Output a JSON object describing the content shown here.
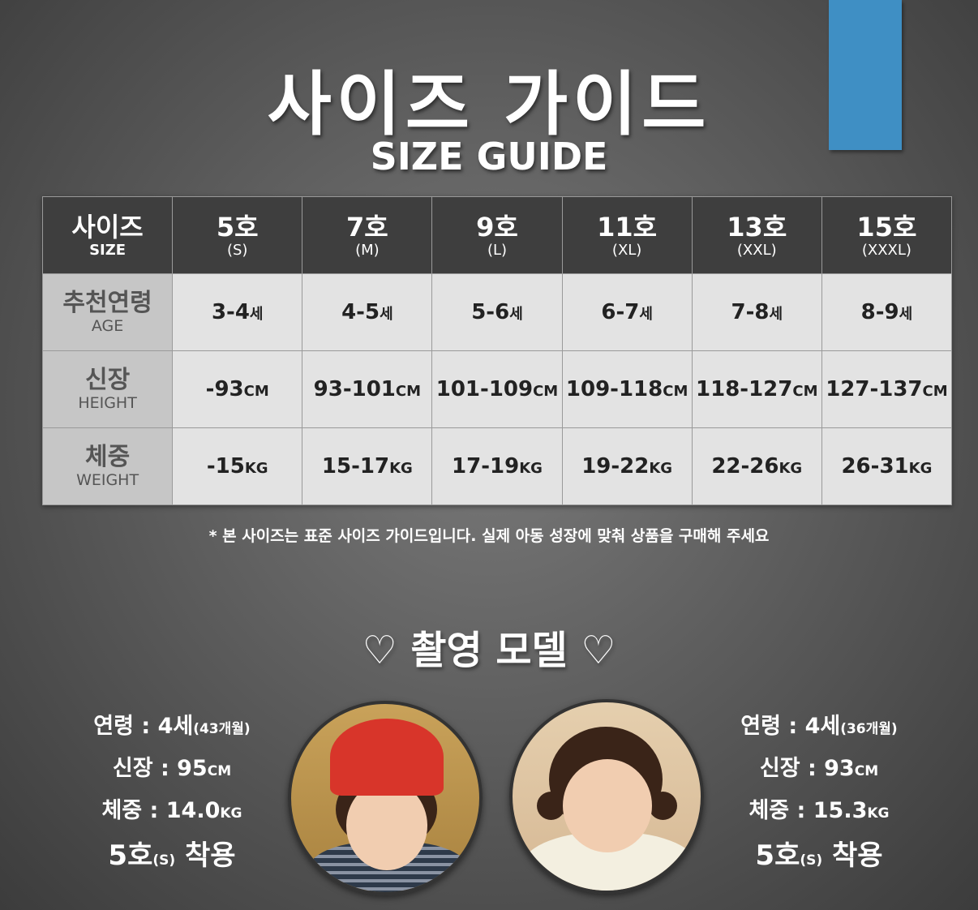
{
  "title_ko": "사이즈 가이드",
  "title_en": "SIZE GUIDE",
  "accent_color": "#3f8fc4",
  "table": {
    "corner": {
      "main": "사이즈",
      "sub": "SIZE"
    },
    "columns": [
      {
        "main": "5호",
        "sub": "(S)"
      },
      {
        "main": "7호",
        "sub": "(M)"
      },
      {
        "main": "9호",
        "sub": "(L)"
      },
      {
        "main": "11호",
        "sub": "(XL)"
      },
      {
        "main": "13호",
        "sub": "(XXL)"
      },
      {
        "main": "15호",
        "sub": "(XXXL)"
      }
    ],
    "rows": [
      {
        "main": "추천연령",
        "sub": "AGE",
        "unit": "세",
        "values": [
          "3-4",
          "4-5",
          "5-6",
          "6-7",
          "7-8",
          "8-9"
        ]
      },
      {
        "main": "신장",
        "sub": "HEIGHT",
        "unit": "CM",
        "values": [
          "-93",
          "93-101",
          "101-109",
          "109-118",
          "118-127",
          "127-137"
        ]
      },
      {
        "main": "체중",
        "sub": "WEIGHT",
        "unit": "KG",
        "values": [
          "-15",
          "15-17",
          "17-19",
          "19-22",
          "22-26",
          "26-31"
        ]
      }
    ]
  },
  "note": "* 본 사이즈는 표준 사이즈 가이드입니다. 실제 아동 성장에 맞춰 상품을 구매해 주세요",
  "models_title": "♡ 촬영 모델 ♡",
  "models": [
    {
      "age_label": "연령 : 4세",
      "age_months": "(43개월)",
      "height_label": "신장 : 95",
      "height_unit": "CM",
      "weight_label": "체중 : 14.0",
      "weight_unit": "KG",
      "size_label": "5호",
      "size_sub": "(S)",
      "wear": "착용"
    },
    {
      "age_label": "연령 : 4세",
      "age_months": "(36개월)",
      "height_label": "신장 : 93",
      "height_unit": "CM",
      "weight_label": "체중 : 15.3",
      "weight_unit": "KG",
      "size_label": "5호",
      "size_sub": "(S)",
      "wear": "착용"
    }
  ]
}
